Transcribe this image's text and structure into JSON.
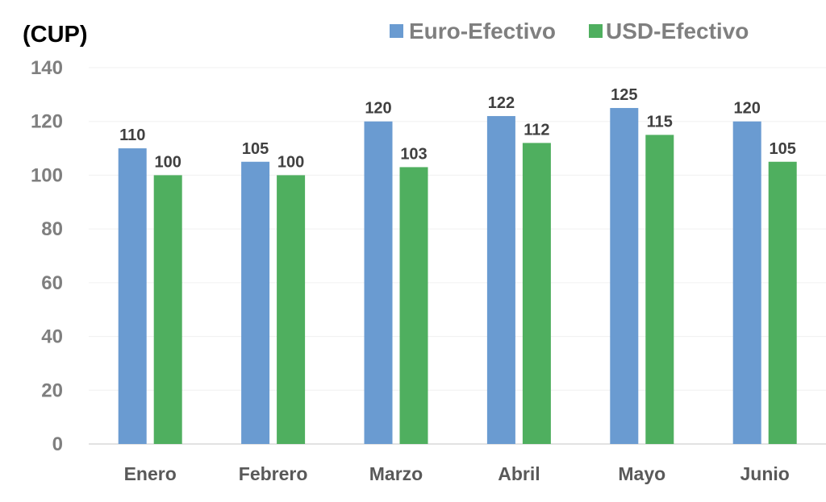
{
  "chart_data": {
    "type": "bar",
    "unit_label": "(CUP)",
    "title": "",
    "xlabel": "",
    "ylabel": "(CUP)",
    "categories": [
      "Enero",
      "Febrero",
      "Marzo",
      "Abril",
      "Mayo",
      "Junio"
    ],
    "series": [
      {
        "name": "Euro-Efectivo",
        "color": "#6a9bd1",
        "values": [
          110,
          105,
          120,
          122,
          125,
          120
        ]
      },
      {
        "name": "USD-Efectivo",
        "color": "#4faf5f",
        "values": [
          100,
          100,
          103,
          112,
          115,
          105
        ]
      }
    ],
    "ylim": [
      0,
      140
    ],
    "yticks": [
      0,
      20,
      40,
      60,
      80,
      100,
      120,
      140
    ],
    "grid": true,
    "legend_position": "top-right",
    "data_labels": true
  }
}
